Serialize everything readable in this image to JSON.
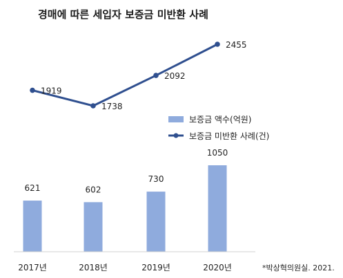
{
  "chart_data": {
    "type": "bar+line",
    "title": "경매에 따른 세입자 보증금 미반환 사례",
    "categories": [
      "2017년",
      "2018년",
      "2019년",
      "2020년"
    ],
    "series": [
      {
        "name": "보증금 액수(억원)",
        "type": "bar",
        "color": "#8fabdd",
        "values": [
          621,
          602,
          730,
          1050
        ]
      },
      {
        "name": "보증금 미반환 사례(건)",
        "type": "line",
        "color": "#2f4f8f",
        "values": [
          1919,
          1738,
          2092,
          2455
        ]
      }
    ],
    "bar_ylim": [
      0,
      1300
    ],
    "line_ylim": [
      1500,
      2500
    ],
    "legend_position": "right",
    "grid": false,
    "source_note": "*박상혁의원실. 2021."
  }
}
